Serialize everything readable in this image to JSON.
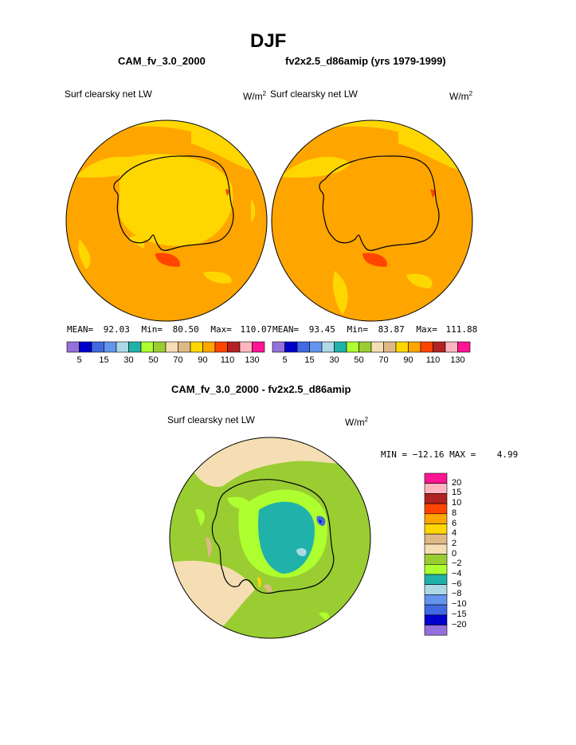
{
  "page_title": "DJF",
  "left_panel": {
    "case_name": "CAM_fv_3.0_2000",
    "variable": "Surf clearsky net LW",
    "units": "W/m",
    "units_sup": "2",
    "stats": {
      "mean_label": "MEAN=",
      "mean": "92.03",
      "min_label": "Min=",
      "min": "80.50",
      "max_label": "Max=",
      "max": "110.07"
    }
  },
  "right_panel": {
    "case_name": "fv2x2.5_d86amip (yrs 1979-1999)",
    "variable": "Surf clearsky net LW",
    "units": "W/m",
    "units_sup": "2",
    "stats": {
      "mean_label": "MEAN=",
      "mean": "93.45",
      "min_label": "Min=",
      "min": "83.87",
      "max_label": "Max=",
      "max": "111.88"
    }
  },
  "top_colorbar": {
    "colors": [
      "#9370db",
      "#0000cd",
      "#4169e1",
      "#6495ed",
      "#add8e6",
      "#20b2aa",
      "#adff2f",
      "#9acd32",
      "#f5deb3",
      "#deb887",
      "#ffd700",
      "#ffa500",
      "#ff4500",
      "#b22222",
      "#ffb6c1",
      "#ff1493"
    ],
    "labels": [
      "5",
      "15",
      "30",
      "50",
      "70",
      "90",
      "110",
      "130"
    ]
  },
  "diff_panel": {
    "title": "CAM_fv_3.0_2000 - fv2x2.5_d86amip",
    "variable": "Surf clearsky net LW",
    "units": "W/m",
    "units_sup": "2",
    "min_max": "MIN = −12.16 MAX =    4.99"
  },
  "diff_colorbar": {
    "colors": [
      "#ff1493",
      "#ffb6c1",
      "#b22222",
      "#ff4500",
      "#ffa500",
      "#ffd700",
      "#deb887",
      "#f5deb3",
      "#9acd32",
      "#adff2f",
      "#20b2aa",
      "#add8e6",
      "#6495ed",
      "#4169e1",
      "#0000cd",
      "#9370db"
    ],
    "labels": [
      "20",
      "15",
      "10",
      "8",
      "6",
      "4",
      "2",
      "0",
      "−2",
      "−4",
      "−6",
      "−8",
      "−10",
      "−15",
      "−20"
    ]
  }
}
